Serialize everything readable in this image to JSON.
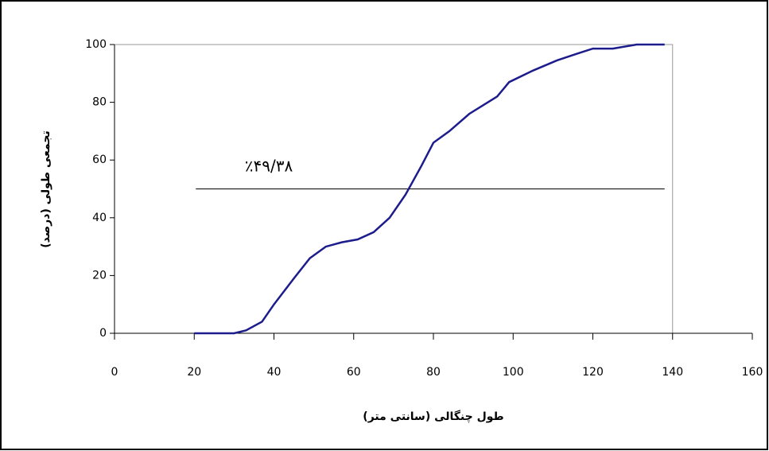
{
  "chart_data": {
    "type": "line",
    "x_label": "طول چنگالی (سانتی متر)",
    "y_label": "تجمعی طولی (درصد)",
    "annotation": "٪۴۹/۳۸",
    "reference_line": {
      "y": 50,
      "x": [
        20.4,
        138
      ]
    },
    "x": [
      20,
      25,
      30,
      33,
      37,
      40,
      45,
      49,
      53,
      57,
      61,
      65,
      69,
      73,
      77,
      80,
      84,
      89,
      96,
      99,
      105,
      111,
      116,
      120,
      125,
      131,
      138
    ],
    "series": [
      {
        "name": "تجمعی",
        "color": "#1c1c8c",
        "values": [
          0,
          0,
          0,
          1,
          4,
          10,
          19,
          26,
          30,
          31.5,
          32.5,
          35,
          40,
          48,
          58,
          66,
          70,
          76,
          82,
          87,
          91,
          94.5,
          96.8,
          98.6,
          98.6,
          100,
          100
        ]
      }
    ],
    "xlim": [
      0,
      160
    ],
    "xticks": [
      0,
      20,
      40,
      60,
      80,
      100,
      120,
      140,
      160
    ],
    "ylim": [
      0,
      100
    ],
    "yticks": [
      0,
      20,
      40,
      60,
      80,
      100
    ]
  }
}
